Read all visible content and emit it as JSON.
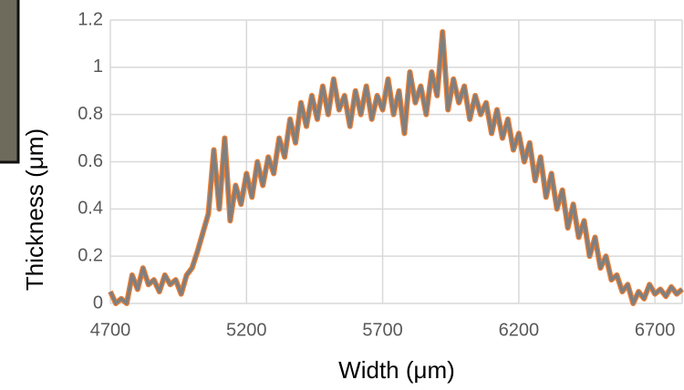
{
  "chart_data": {
    "type": "line",
    "xlabel": "Width (μm)",
    "ylabel": "Thickness (μm)",
    "x": [
      4700,
      4720,
      4740,
      4760,
      4780,
      4800,
      4820,
      4840,
      4860,
      4880,
      4900,
      4920,
      4940,
      4960,
      4980,
      5000,
      5020,
      5040,
      5060,
      5080,
      5100,
      5120,
      5140,
      5160,
      5180,
      5200,
      5220,
      5240,
      5260,
      5280,
      5300,
      5320,
      5340,
      5360,
      5380,
      5400,
      5420,
      5440,
      5460,
      5480,
      5500,
      5520,
      5540,
      5560,
      5580,
      5600,
      5620,
      5640,
      5660,
      5680,
      5700,
      5720,
      5740,
      5760,
      5780,
      5800,
      5820,
      5840,
      5860,
      5880,
      5900,
      5920,
      5940,
      5960,
      5980,
      6000,
      6020,
      6040,
      6060,
      6080,
      6100,
      6120,
      6140,
      6160,
      6180,
      6200,
      6220,
      6240,
      6260,
      6280,
      6300,
      6320,
      6340,
      6360,
      6380,
      6400,
      6420,
      6440,
      6460,
      6480,
      6500,
      6520,
      6540,
      6560,
      6580,
      6600,
      6620,
      6640,
      6660,
      6680,
      6700,
      6720,
      6740,
      6760,
      6780,
      6800
    ],
    "values": [
      0.05,
      0.0,
      0.02,
      0.0,
      0.12,
      0.06,
      0.15,
      0.08,
      0.1,
      0.05,
      0.12,
      0.08,
      0.1,
      0.04,
      0.12,
      0.15,
      0.22,
      0.3,
      0.38,
      0.65,
      0.4,
      0.7,
      0.35,
      0.5,
      0.42,
      0.55,
      0.45,
      0.6,
      0.5,
      0.62,
      0.55,
      0.7,
      0.62,
      0.78,
      0.68,
      0.85,
      0.75,
      0.88,
      0.78,
      0.92,
      0.8,
      0.95,
      0.82,
      0.88,
      0.75,
      0.9,
      0.8,
      0.92,
      0.78,
      0.88,
      0.82,
      0.95,
      0.8,
      0.9,
      0.72,
      0.98,
      0.85,
      0.92,
      0.8,
      0.98,
      0.88,
      1.15,
      0.82,
      0.95,
      0.85,
      0.92,
      0.78,
      0.88,
      0.8,
      0.85,
      0.72,
      0.82,
      0.7,
      0.78,
      0.65,
      0.72,
      0.6,
      0.68,
      0.52,
      0.62,
      0.45,
      0.55,
      0.4,
      0.48,
      0.32,
      0.42,
      0.28,
      0.35,
      0.2,
      0.28,
      0.15,
      0.2,
      0.1,
      0.12,
      0.05,
      0.08,
      0.0,
      0.05,
      0.02,
      0.08,
      0.04,
      0.06,
      0.03,
      0.07,
      0.04,
      0.06
    ],
    "color": "#7f7f7f",
    "outline_color": "#ed7d31",
    "xlim": [
      4700,
      6800
    ],
    "xticks": [
      4700,
      5200,
      5700,
      6200,
      6700
    ],
    "ylim": [
      0,
      1.2
    ],
    "yticks": [
      0,
      0.2,
      0.4,
      0.6,
      0.8,
      1,
      1.2
    ],
    "grid": true
  }
}
